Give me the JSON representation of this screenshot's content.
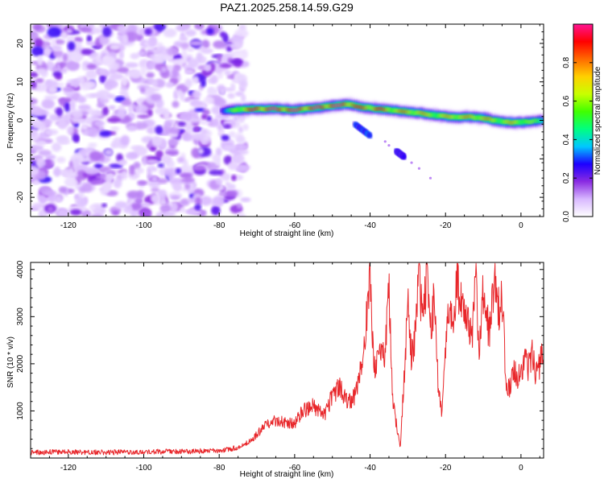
{
  "title": "PAZ1.2025.258.14.59.G29",
  "chart_data": [
    {
      "type": "heatmap",
      "title": "PAZ1.2025.258.14.59.G29",
      "xlabel": "Height of straight line (km)",
      "ylabel": "Frequency (Hz)",
      "xlim": [
        -130,
        6
      ],
      "ylim": [
        -25,
        25
      ],
      "xticks": [
        -120,
        -100,
        -80,
        -60,
        -40,
        -20,
        0
      ],
      "yticks": [
        -20,
        -10,
        0,
        10,
        20
      ],
      "colorbar": {
        "label": "Normalized spectral amplitude",
        "range": [
          0,
          1
        ],
        "ticks": [
          0.0,
          0.2,
          0.4,
          0.6,
          0.8
        ],
        "colors": [
          "#ffffff",
          "#d8b8ff",
          "#8a2be2",
          "#1c00ff",
          "#00c8ff",
          "#00ff80",
          "#40ff00",
          "#c8ff00",
          "#ffd000",
          "#ff6a00",
          "#ff0000",
          "#ff1493"
        ]
      },
      "noise_region": {
        "x": [
          -130,
          -73
        ],
        "y": [
          -25,
          25
        ],
        "level": 0.2
      },
      "signal_trace": {
        "x": [
          -79,
          -75,
          -70,
          -65,
          -60,
          -55,
          -50,
          -46,
          -42,
          -38,
          -34,
          -30,
          -26,
          -22,
          -18,
          -14,
          -10,
          -6,
          -2,
          2,
          6
        ],
        "frequency": [
          2.5,
          2.8,
          3.0,
          3.0,
          2.7,
          3.2,
          3.8,
          4.2,
          3.4,
          3.0,
          2.6,
          2.2,
          1.8,
          1.2,
          0.8,
          0.9,
          0.6,
          -0.2,
          -0.6,
          -0.4,
          0.0
        ],
        "peak_amplitude": [
          0.3,
          0.65,
          0.9,
          0.95,
          0.92,
          0.9,
          0.95,
          0.9,
          0.8,
          0.85,
          0.7,
          0.75,
          0.7,
          0.6,
          0.75,
          0.7,
          0.75,
          0.6,
          0.7,
          0.55,
          0.5
        ]
      },
      "secondary_features": [
        {
          "x": [
            -44,
            -42,
            -40
          ],
          "frequency": [
            -1.0,
            -2.5,
            -4.0
          ],
          "amplitude": 0.35
        },
        {
          "x": [
            -33,
            -31
          ],
          "frequency": [
            -8.0,
            -9.5
          ],
          "amplitude": 0.3
        }
      ]
    },
    {
      "type": "line",
      "title": "",
      "xlabel": "Height of straight line (km)",
      "ylabel": "SNR (10 * v/v)",
      "xlim": [
        -130,
        6
      ],
      "ylim": [
        0,
        4150
      ],
      "xticks": [
        -120,
        -100,
        -80,
        -60,
        -40,
        -20,
        0
      ],
      "yticks": [
        1000,
        2000,
        3000,
        4000
      ],
      "color": "#e8262a",
      "series": [
        {
          "name": "SNR",
          "x": [
            -130,
            -120,
            -110,
            -100,
            -90,
            -80,
            -75,
            -72,
            -70,
            -68,
            -65,
            -62,
            -60,
            -58,
            -55,
            -52,
            -50,
            -48,
            -46,
            -44,
            -42,
            -40,
            -39,
            -38,
            -36,
            -35,
            -34,
            -32,
            -30,
            -29,
            -28,
            -27,
            -26,
            -25,
            -24,
            -23,
            -22,
            -21,
            -20,
            -19,
            -18,
            -17,
            -16,
            -15,
            -14,
            -13,
            -12,
            -11,
            -10,
            -9,
            -8,
            -7,
            -6,
            -5,
            -4,
            -3,
            -2,
            -1,
            0,
            1,
            2,
            3,
            4,
            5,
            6
          ],
          "y": [
            120,
            130,
            120,
            130,
            140,
            150,
            220,
            350,
            500,
            680,
            800,
            750,
            720,
            1000,
            1100,
            900,
            1350,
            1500,
            1200,
            1300,
            2100,
            3950,
            1800,
            2100,
            2300,
            3600,
            1200,
            200,
            3200,
            2100,
            2700,
            3900,
            2900,
            4050,
            2600,
            3400,
            1600,
            950,
            2400,
            3100,
            2800,
            3750,
            3300,
            3000,
            2900,
            2600,
            3800,
            2300,
            3600,
            2900,
            2700,
            4100,
            3100,
            3500,
            1700,
            1450,
            1900,
            1700,
            1850,
            2100,
            1900,
            2200,
            1750,
            2000,
            2350
          ]
        }
      ]
    }
  ]
}
